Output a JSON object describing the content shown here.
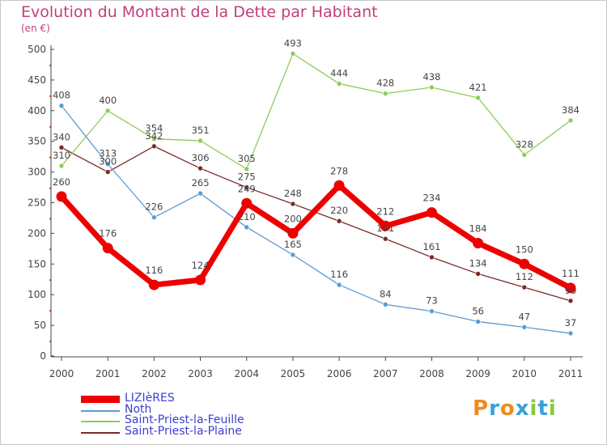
{
  "header": {
    "title": "Evolution du Montant de la Dette par Habitant",
    "unit_label": "(en €)"
  },
  "chart_data": {
    "type": "line",
    "title": "Evolution du Montant de la Dette par Habitant",
    "ylabel": "(en €)",
    "xlabel": "",
    "ylim": [
      0,
      500
    ],
    "yticks": [
      0,
      50,
      100,
      150,
      200,
      250,
      300,
      350,
      400,
      450,
      500
    ],
    "x": [
      "2000",
      "2001",
      "2002",
      "2003",
      "2004",
      "2005",
      "2006",
      "2007",
      "2008",
      "2009",
      "2010",
      "2011"
    ],
    "grid": false,
    "legend_position": "bottom-left",
    "series": [
      {
        "name": "LIZIèRES",
        "color": "#ee0000",
        "emphasis": true,
        "values": [
          260,
          176,
          116,
          124,
          249,
          200,
          278,
          212,
          234,
          184,
          150,
          111
        ],
        "labels": [
          "260",
          "176",
          "116",
          "124",
          "249",
          "200",
          "278",
          "212",
          "234",
          "184",
          "150",
          "111"
        ]
      },
      {
        "name": "Noth",
        "color": "#5b9bd5",
        "values": [
          408,
          313,
          226,
          265,
          210,
          165,
          116,
          84,
          73,
          56,
          47,
          37
        ],
        "labels": [
          "408",
          "313",
          "226",
          "265",
          "210",
          "165",
          "116",
          "84",
          "73",
          "56",
          "47",
          "37"
        ]
      },
      {
        "name": "Saint-Priest-la-Feuille",
        "color": "#8ccd5a",
        "values": [
          310,
          400,
          354,
          351,
          305,
          493,
          444,
          428,
          438,
          421,
          328,
          384
        ],
        "labels": [
          "310",
          "400",
          "354",
          "351",
          "305",
          "493",
          "444",
          "428",
          "438",
          "421",
          "328",
          "384"
        ]
      },
      {
        "name": "Saint-Priest-la-Plaine",
        "color": "#7b2a2a",
        "values": [
          340,
          300,
          342,
          306,
          275,
          248,
          220,
          191,
          161,
          134,
          112,
          90
        ],
        "labels": [
          "340",
          "300",
          "342",
          "306",
          "275",
          "248",
          "220",
          "191",
          "161",
          "134",
          "112",
          "90"
        ]
      }
    ]
  },
  "logo": {
    "text": "Proxiti",
    "letter_colors": [
      "#f08a1e",
      "#3aa0d8",
      "#f08a1e",
      "#3aa0d8",
      "#8cc63f",
      "#3aa0d8",
      "#8cc63f"
    ]
  }
}
